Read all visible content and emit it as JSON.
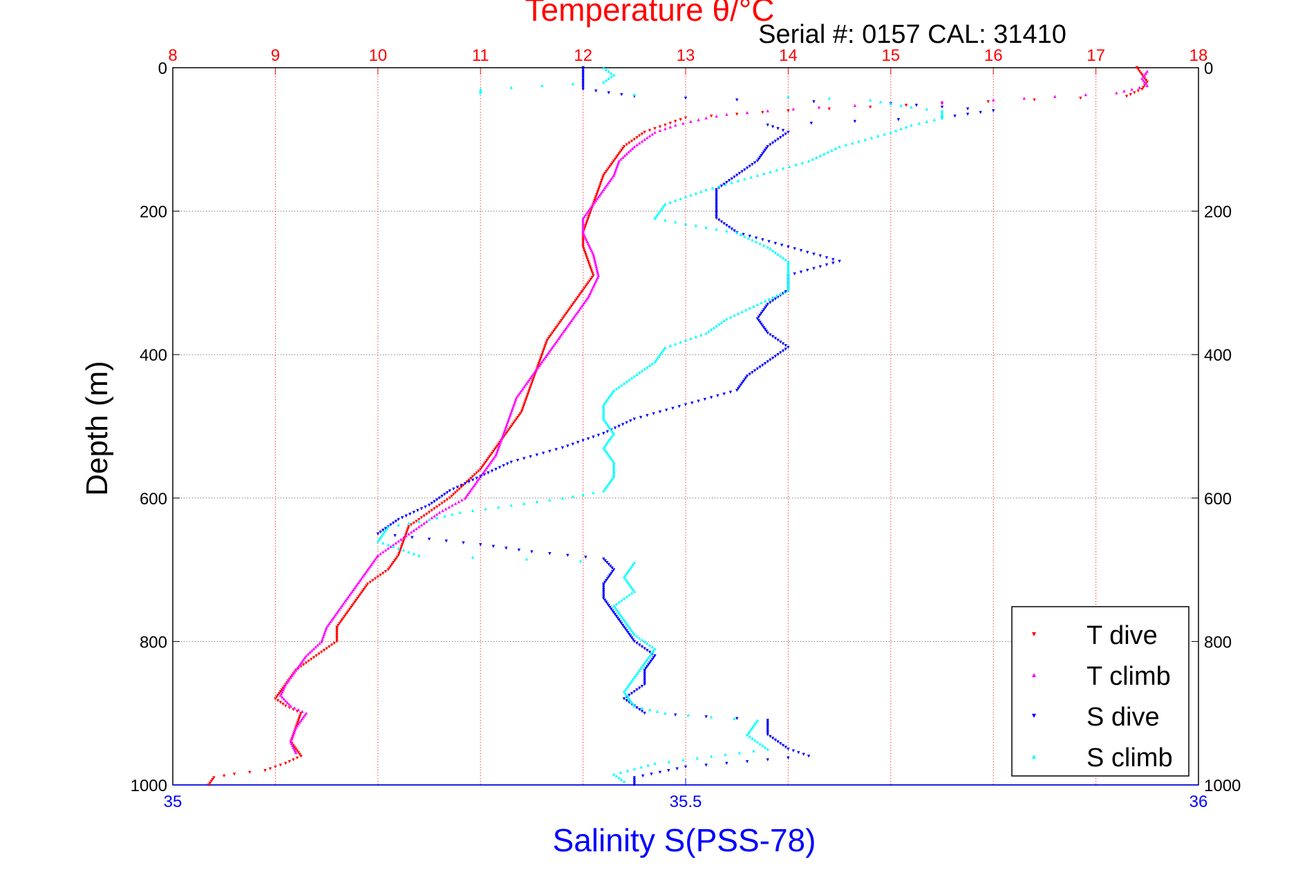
{
  "chart_data": {
    "type": "scatter",
    "title": "Temperature θ/°C",
    "subtitle": "Serial #: 0157  CAL: 31410",
    "ylabel": "Depth (m)",
    "xlabel_bottom": "Salinity S(PSS-78)",
    "y_axis": {
      "range": [
        0,
        1000
      ],
      "reversed": true,
      "ticks": [
        0,
        200,
        400,
        600,
        800,
        1000
      ],
      "tick_labels": [
        "0",
        "200",
        "400",
        "600",
        "800",
        "1000"
      ]
    },
    "x_top": {
      "range": [
        8,
        18
      ],
      "ticks": [
        8,
        9,
        10,
        11,
        12,
        13,
        14,
        15,
        16,
        17,
        18
      ],
      "tick_labels": [
        "8",
        "9",
        "10",
        "11",
        "12",
        "13",
        "14",
        "15",
        "16",
        "17",
        "18"
      ],
      "color": "#ff0000"
    },
    "x_bottom": {
      "range": [
        35,
        36
      ],
      "ticks": [
        35,
        35.5,
        36
      ],
      "tick_labels": [
        "35",
        "35.5",
        "36"
      ],
      "color": "#0000ff"
    },
    "grid": true,
    "legend_position": "bottom-right",
    "series": [
      {
        "name": "T dive",
        "axis": "top",
        "color": "#ff0000",
        "marker": "triangle-down",
        "points": [
          [
            17.4,
            0
          ],
          [
            17.45,
            10
          ],
          [
            17.5,
            20
          ],
          [
            17.45,
            30
          ],
          [
            17.3,
            40
          ],
          [
            15.5,
            50
          ],
          [
            14.8,
            55
          ],
          [
            14.0,
            60
          ],
          [
            13.5,
            65
          ],
          [
            13.0,
            70
          ],
          [
            12.8,
            80
          ],
          [
            12.6,
            90
          ],
          [
            12.4,
            110
          ],
          [
            12.3,
            130
          ],
          [
            12.2,
            150
          ],
          [
            12.15,
            170
          ],
          [
            12.1,
            190
          ],
          [
            12.05,
            210
          ],
          [
            12.0,
            230
          ],
          [
            12.0,
            250
          ],
          [
            12.05,
            270
          ],
          [
            12.1,
            290
          ],
          [
            12.0,
            310
          ],
          [
            11.9,
            330
          ],
          [
            11.8,
            350
          ],
          [
            11.7,
            370
          ],
          [
            11.65,
            380
          ],
          [
            11.6,
            400
          ],
          [
            11.55,
            420
          ],
          [
            11.5,
            440
          ],
          [
            11.45,
            460
          ],
          [
            11.4,
            480
          ],
          [
            11.3,
            500
          ],
          [
            11.2,
            520
          ],
          [
            11.1,
            540
          ],
          [
            11.0,
            560
          ],
          [
            10.85,
            580
          ],
          [
            10.7,
            600
          ],
          [
            10.5,
            620
          ],
          [
            10.3,
            640
          ],
          [
            10.25,
            660
          ],
          [
            10.2,
            680
          ],
          [
            10.1,
            700
          ],
          [
            9.9,
            720
          ],
          [
            9.8,
            740
          ],
          [
            9.7,
            760
          ],
          [
            9.6,
            780
          ],
          [
            9.6,
            800
          ],
          [
            9.4,
            820
          ],
          [
            9.2,
            840
          ],
          [
            9.1,
            860
          ],
          [
            9.0,
            880
          ],
          [
            9.1,
            890
          ],
          [
            9.25,
            900
          ],
          [
            9.2,
            920
          ],
          [
            9.15,
            940
          ],
          [
            9.25,
            960
          ],
          [
            9.1,
            970
          ],
          [
            8.9,
            980
          ],
          [
            8.6,
            985
          ],
          [
            8.4,
            990
          ],
          [
            8.35,
            1000
          ]
        ]
      },
      {
        "name": "T climb",
        "axis": "top",
        "color": "#ff00ff",
        "marker": "triangle-up",
        "points": [
          [
            17.5,
            5
          ],
          [
            17.45,
            15
          ],
          [
            17.5,
            25
          ],
          [
            17.2,
            35
          ],
          [
            16.0,
            45
          ],
          [
            15.0,
            50
          ],
          [
            14.3,
            55
          ],
          [
            13.8,
            60
          ],
          [
            13.4,
            65
          ],
          [
            13.2,
            70
          ],
          [
            12.9,
            80
          ],
          [
            12.7,
            90
          ],
          [
            12.5,
            110
          ],
          [
            12.35,
            130
          ],
          [
            12.3,
            150
          ],
          [
            12.2,
            170
          ],
          [
            12.1,
            190
          ],
          [
            12.0,
            210
          ],
          [
            12.0,
            230
          ],
          [
            12.1,
            260
          ],
          [
            12.15,
            290
          ],
          [
            12.05,
            320
          ],
          [
            11.9,
            350
          ],
          [
            11.8,
            370
          ],
          [
            11.65,
            400
          ],
          [
            11.55,
            420
          ],
          [
            11.45,
            440
          ],
          [
            11.35,
            460
          ],
          [
            11.3,
            480
          ],
          [
            11.25,
            500
          ],
          [
            11.2,
            520
          ],
          [
            11.15,
            540
          ],
          [
            11.05,
            560
          ],
          [
            10.95,
            580
          ],
          [
            10.85,
            600
          ],
          [
            10.6,
            620
          ],
          [
            10.4,
            640
          ],
          [
            10.2,
            660
          ],
          [
            10.0,
            680
          ],
          [
            9.9,
            700
          ],
          [
            9.8,
            720
          ],
          [
            9.7,
            740
          ],
          [
            9.6,
            760
          ],
          [
            9.5,
            780
          ],
          [
            9.45,
            800
          ],
          [
            9.3,
            820
          ],
          [
            9.2,
            840
          ],
          [
            9.1,
            860
          ],
          [
            9.05,
            875
          ],
          [
            9.15,
            890
          ],
          [
            9.3,
            900
          ],
          [
            9.2,
            920
          ],
          [
            9.15,
            940
          ],
          [
            9.2,
            955
          ]
        ]
      },
      {
        "name": "S dive",
        "axis": "bottom",
        "color": "#0000ff",
        "marker": "triangle-down",
        "points": [
          [
            35.4,
            0
          ],
          [
            35.4,
            10
          ],
          [
            35.4,
            20
          ],
          [
            35.4,
            30
          ],
          [
            35.45,
            40
          ],
          [
            35.55,
            45
          ],
          [
            35.7,
            50
          ],
          [
            35.75,
            55
          ],
          [
            35.8,
            60
          ],
          [
            35.75,
            70
          ],
          [
            35.58,
            80
          ],
          [
            35.6,
            90
          ],
          [
            35.58,
            110
          ],
          [
            35.57,
            130
          ],
          [
            35.55,
            150
          ],
          [
            35.53,
            170
          ],
          [
            35.53,
            190
          ],
          [
            35.53,
            210
          ],
          [
            35.55,
            230
          ],
          [
            35.6,
            250
          ],
          [
            35.65,
            270
          ],
          [
            35.6,
            290
          ],
          [
            35.6,
            310
          ],
          [
            35.58,
            330
          ],
          [
            35.57,
            350
          ],
          [
            35.58,
            370
          ],
          [
            35.6,
            390
          ],
          [
            35.58,
            410
          ],
          [
            35.56,
            430
          ],
          [
            35.55,
            450
          ],
          [
            35.5,
            470
          ],
          [
            35.45,
            490
          ],
          [
            35.42,
            510
          ],
          [
            35.38,
            530
          ],
          [
            35.33,
            550
          ],
          [
            35.3,
            570
          ],
          [
            35.27,
            590
          ],
          [
            35.25,
            610
          ],
          [
            35.22,
            630
          ],
          [
            35.2,
            650
          ],
          [
            35.3,
            665
          ],
          [
            35.35,
            675
          ],
          [
            35.42,
            685
          ],
          [
            35.43,
            700
          ],
          [
            35.42,
            720
          ],
          [
            35.42,
            740
          ],
          [
            35.43,
            760
          ],
          [
            35.44,
            780
          ],
          [
            35.45,
            800
          ],
          [
            35.47,
            820
          ],
          [
            35.46,
            840
          ],
          [
            35.46,
            860
          ],
          [
            35.44,
            880
          ],
          [
            35.46,
            900
          ],
          [
            35.58,
            910
          ],
          [
            35.58,
            930
          ],
          [
            35.6,
            950
          ],
          [
            35.62,
            960
          ],
          [
            35.5,
            975
          ],
          [
            35.45,
            990
          ],
          [
            35.45,
            1000
          ]
        ]
      },
      {
        "name": "S climb",
        "axis": "bottom",
        "color": "#00ffff",
        "marker": "triangle-up",
        "points": [
          [
            35.42,
            0
          ],
          [
            35.43,
            10
          ],
          [
            35.42,
            20
          ],
          [
            35.3,
            30
          ],
          [
            35.3,
            35
          ],
          [
            35.6,
            40
          ],
          [
            35.68,
            45
          ],
          [
            35.72,
            55
          ],
          [
            35.75,
            60
          ],
          [
            35.75,
            70
          ],
          [
            35.72,
            80
          ],
          [
            35.7,
            90
          ],
          [
            35.65,
            110
          ],
          [
            35.62,
            130
          ],
          [
            35.57,
            150
          ],
          [
            35.52,
            170
          ],
          [
            35.48,
            190
          ],
          [
            35.47,
            210
          ],
          [
            35.55,
            230
          ],
          [
            35.58,
            250
          ],
          [
            35.6,
            270
          ],
          [
            35.6,
            290
          ],
          [
            35.6,
            310
          ],
          [
            35.57,
            330
          ],
          [
            35.54,
            350
          ],
          [
            35.52,
            370
          ],
          [
            35.48,
            390
          ],
          [
            35.47,
            410
          ],
          [
            35.45,
            430
          ],
          [
            35.43,
            450
          ],
          [
            35.42,
            470
          ],
          [
            35.42,
            490
          ],
          [
            35.43,
            510
          ],
          [
            35.42,
            530
          ],
          [
            35.43,
            550
          ],
          [
            35.43,
            570
          ],
          [
            35.42,
            590
          ],
          [
            35.38,
            600
          ],
          [
            35.33,
            610
          ],
          [
            35.28,
            620
          ],
          [
            35.25,
            630
          ],
          [
            35.21,
            640
          ],
          [
            35.2,
            660
          ],
          [
            35.24,
            680
          ],
          [
            35.45,
            690
          ],
          [
            35.44,
            710
          ],
          [
            35.45,
            730
          ],
          [
            35.43,
            750
          ],
          [
            35.44,
            770
          ],
          [
            35.45,
            790
          ],
          [
            35.47,
            810
          ],
          [
            35.46,
            830
          ],
          [
            35.45,
            850
          ],
          [
            35.44,
            870
          ],
          [
            35.45,
            890
          ],
          [
            35.48,
            900
          ],
          [
            35.57,
            910
          ],
          [
            35.56,
            930
          ],
          [
            35.58,
            950
          ],
          [
            35.47,
            970
          ],
          [
            35.43,
            985
          ],
          [
            35.44,
            995
          ]
        ]
      }
    ]
  }
}
